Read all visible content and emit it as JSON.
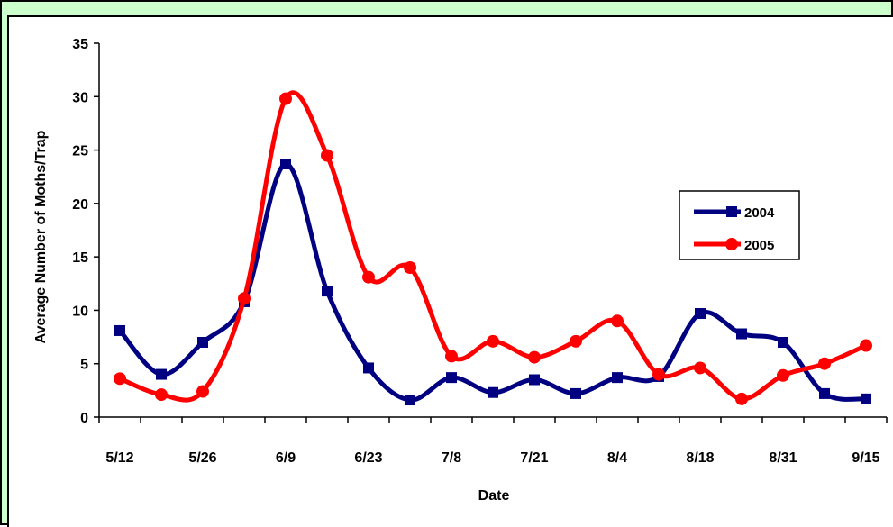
{
  "chart_data": {
    "type": "line",
    "title": "",
    "xlabel": "Date",
    "ylabel": "Average Number of Moths/Trap",
    "ylim": [
      0,
      35
    ],
    "yticks": [
      0,
      5,
      10,
      15,
      20,
      25,
      30,
      35
    ],
    "xtick_labels": [
      "5/12",
      "5/26",
      "6/9",
      "6/23",
      "7/8",
      "7/21",
      "8/4",
      "8/18",
      "8/31",
      "9/15"
    ],
    "grid": false,
    "legend_position": "right",
    "series": [
      {
        "name": "2004",
        "color": "#000080",
        "marker": "square",
        "values": [
          8.1,
          4.0,
          7.0,
          10.8,
          23.7,
          11.8,
          4.6,
          1.6,
          3.7,
          2.3,
          3.5,
          2.2,
          3.7,
          3.8,
          9.7,
          7.8,
          7.0,
          2.2,
          1.7
        ]
      },
      {
        "name": "2005",
        "color": "#ff0000",
        "marker": "circle",
        "values": [
          3.6,
          2.1,
          2.4,
          11.1,
          29.8,
          24.5,
          13.1,
          14.0,
          5.7,
          7.1,
          5.6,
          7.1,
          9.0,
          4.0,
          4.6,
          1.7,
          3.9,
          5.0,
          6.7
        ]
      }
    ]
  }
}
